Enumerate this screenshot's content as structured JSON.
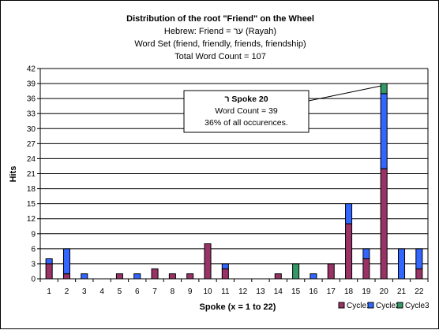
{
  "chart_data": {
    "type": "bar",
    "stacked": true,
    "title": "Distribution of the root \"Friend\" on the Wheel",
    "subtitle_lines": [
      "Hebrew: Friend = ער (Rayah)",
      "Word Set (friend, friendly, friends, friendship)",
      "Total Word Count = 107"
    ],
    "xlabel": "Spoke (x = 1 to 22)",
    "ylabel": "Hits",
    "ylim": [
      0,
      42
    ],
    "yticks": [
      0,
      3,
      6,
      9,
      12,
      15,
      18,
      21,
      24,
      27,
      30,
      33,
      36,
      39,
      42
    ],
    "grid": true,
    "legend_position": "bottom-right",
    "categories": [
      "1",
      "2",
      "3",
      "4",
      "5",
      "6",
      "7",
      "8",
      "9",
      "10",
      "11",
      "12",
      "13",
      "14",
      "15",
      "16",
      "17",
      "18",
      "19",
      "20",
      "21",
      "22"
    ],
    "series": [
      {
        "name": "Cycle1",
        "color": "#993366",
        "values": [
          3,
          1,
          0,
          0,
          1,
          0,
          2,
          1,
          1,
          7,
          2,
          0,
          0,
          1,
          0,
          0,
          3,
          11,
          4,
          22,
          0,
          2
        ]
      },
      {
        "name": "Cycle2",
        "color": "#3366FF",
        "values": [
          1,
          5,
          1,
          0,
          0,
          1,
          0,
          0,
          0,
          0,
          1,
          0,
          0,
          0,
          0,
          1,
          0,
          4,
          2,
          15,
          6,
          4
        ]
      },
      {
        "name": "Cycle3",
        "color": "#339966",
        "values": [
          0,
          0,
          0,
          0,
          0,
          0,
          0,
          0,
          0,
          0,
          0,
          0,
          0,
          0,
          3,
          0,
          0,
          0,
          0,
          2,
          0,
          0
        ]
      }
    ],
    "annotation": {
      "target_category": "20",
      "title": "ר Spoke 20",
      "lines": [
        "Word Count = 39",
        "36% of all occurences."
      ]
    },
    "plot_background": "#ffffff",
    "grid_color": "#000000"
  }
}
